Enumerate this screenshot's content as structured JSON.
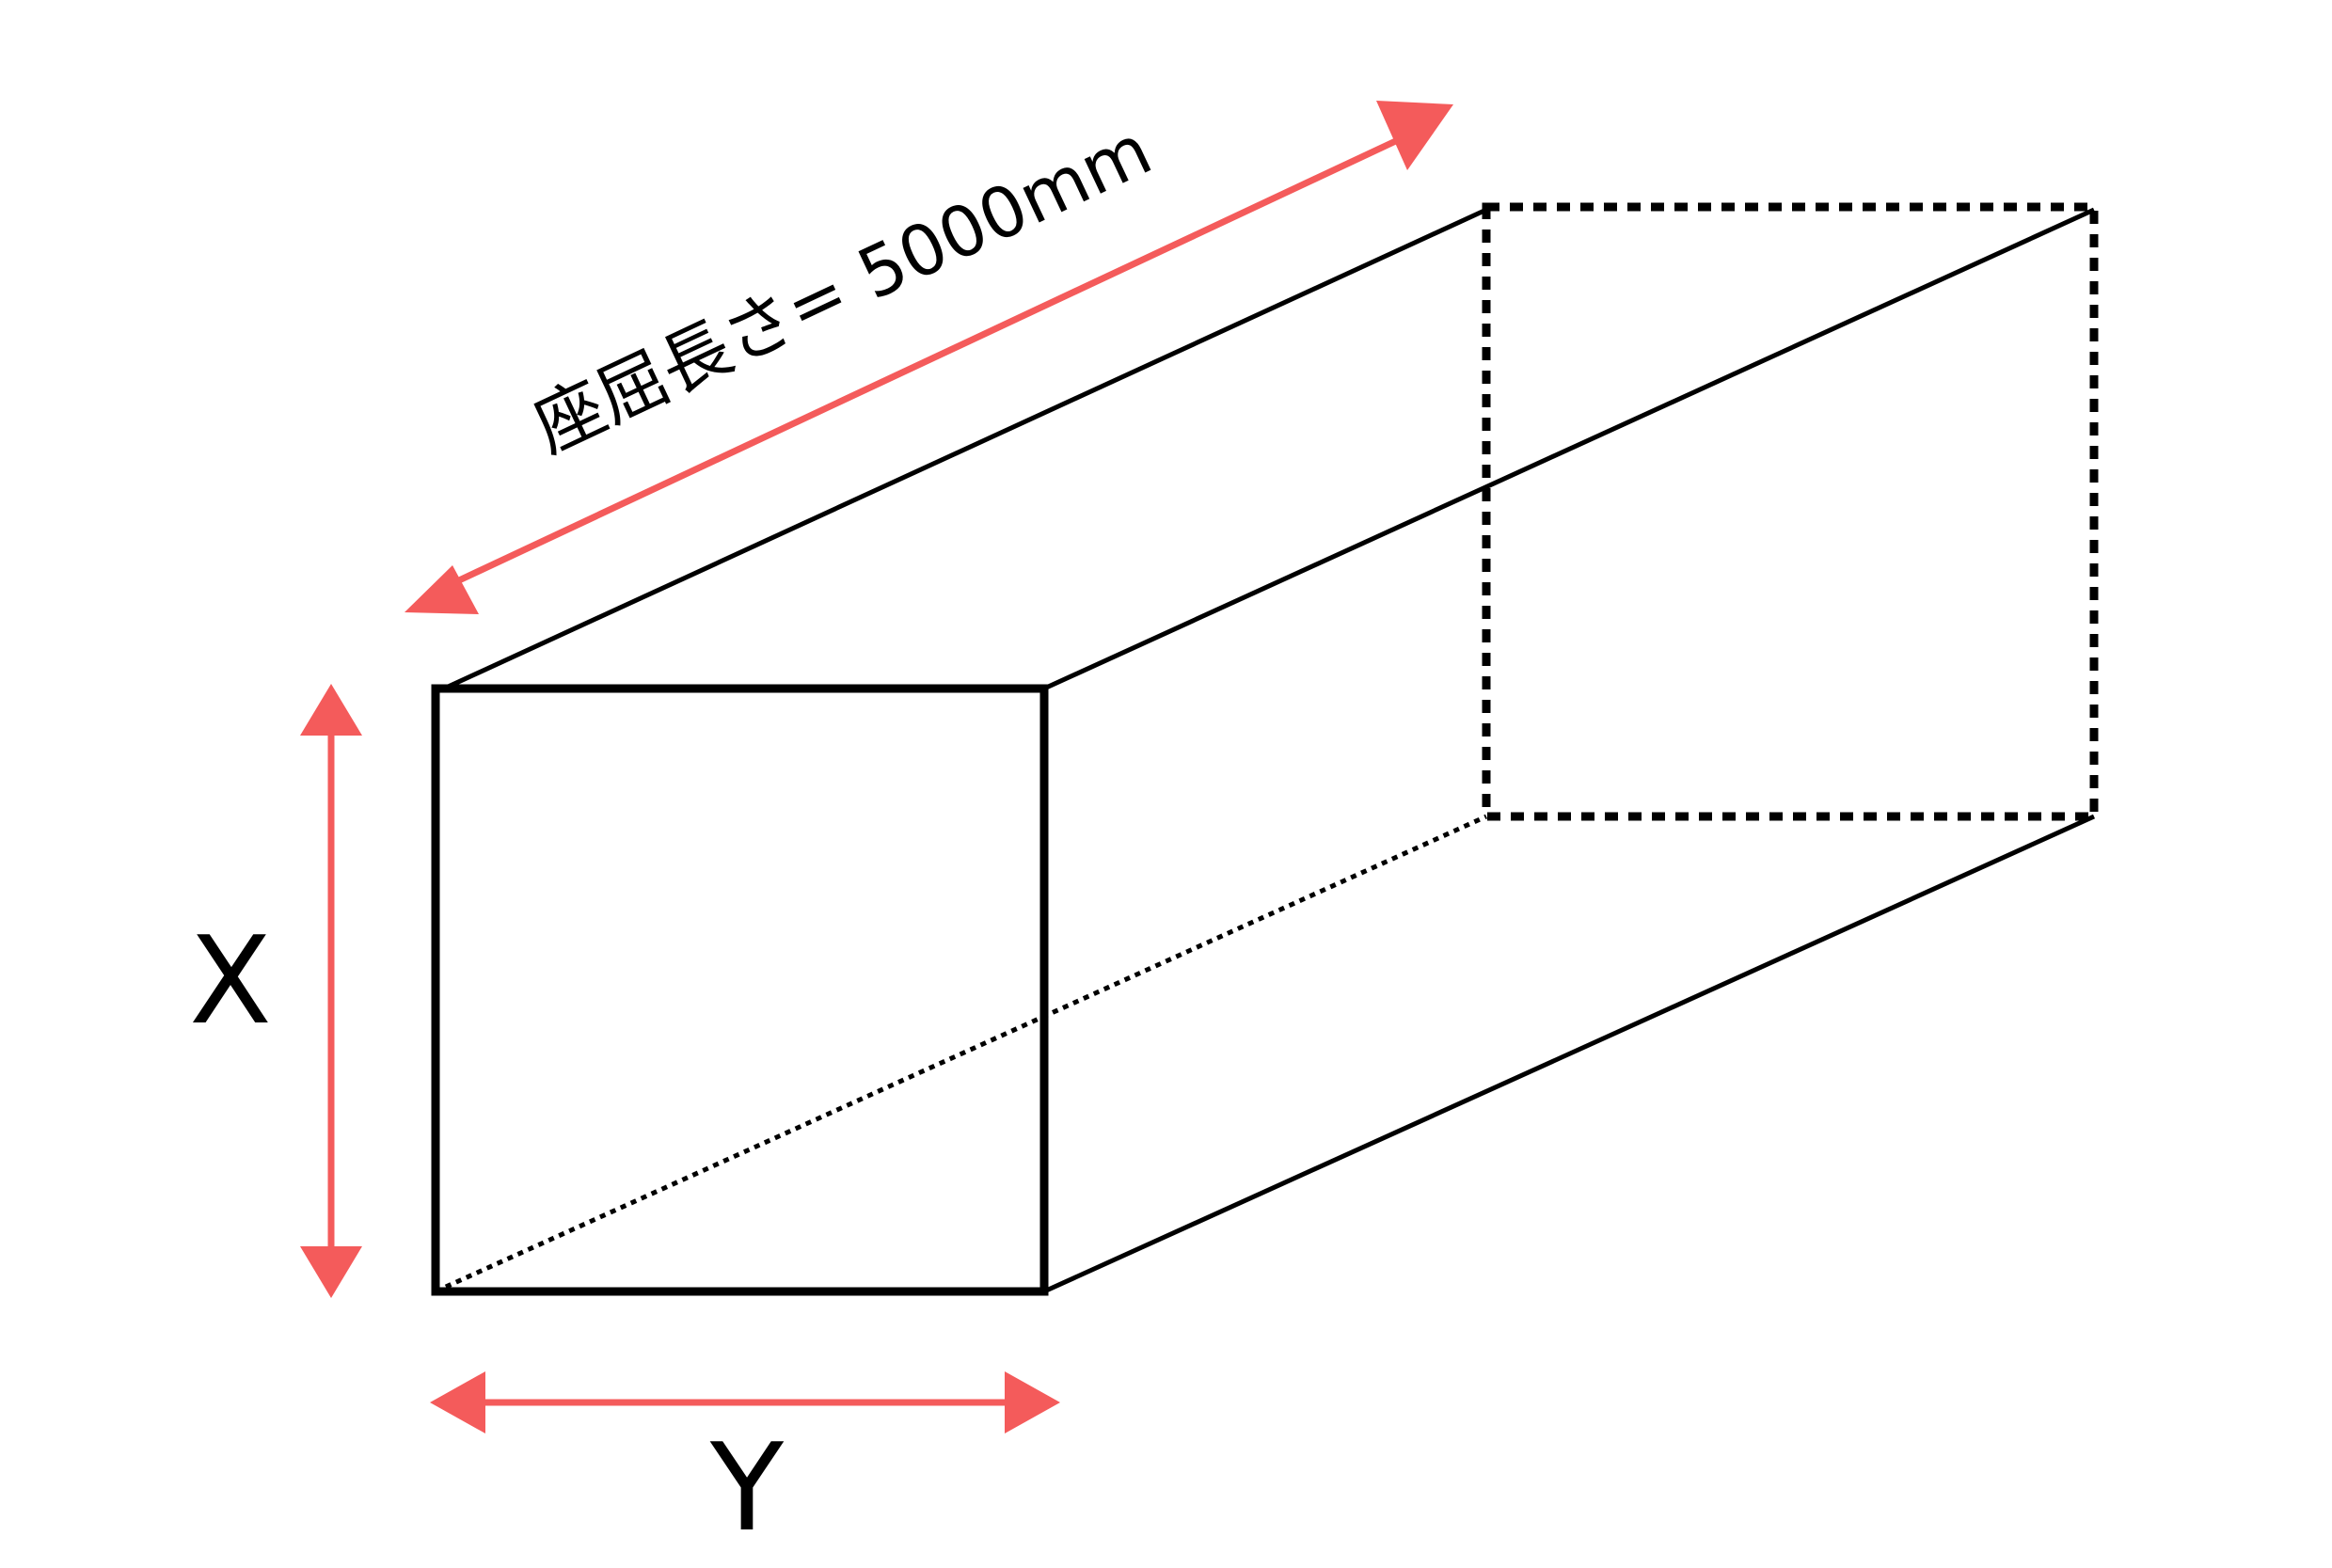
{
  "labels": {
    "buckling_length": "座屈長さ= 5000mm",
    "height_dimension": "X",
    "width_dimension": "Y"
  },
  "colors": {
    "dimension_arrow": "#f45b5b",
    "outline": "#000000",
    "background": "#ffffff"
  }
}
